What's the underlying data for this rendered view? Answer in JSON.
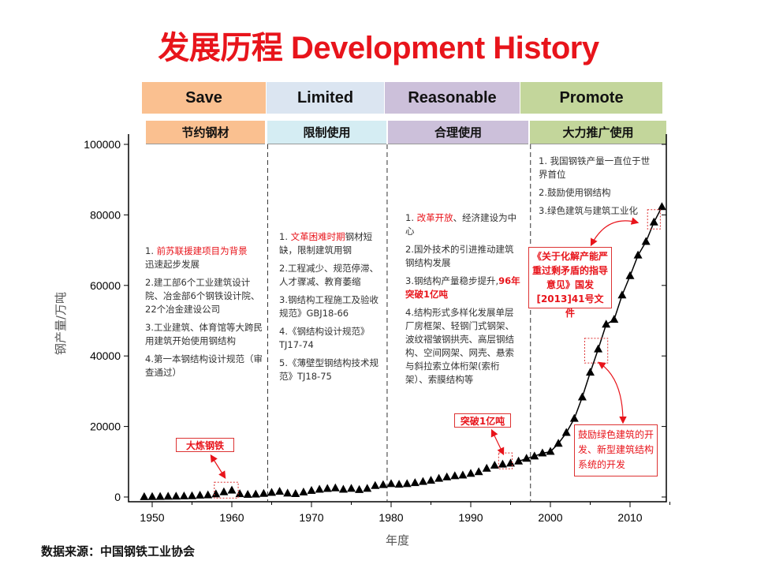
{
  "title": "发展历程 Development History",
  "stages_en": [
    "Save",
    "Limited",
    "Reasonable",
    "Promote"
  ],
  "stages_cn": [
    "节约钢材",
    "限制使用",
    "合理使用",
    "大力推广使用"
  ],
  "colors": {
    "save": "#fac090",
    "limited": "#dbe5f1",
    "limited_cn": "#d5edf3",
    "reasonable": "#ccc0da",
    "promote": "#c3d69b",
    "accent": "#e8141b"
  },
  "notes": {
    "p1": [
      "1. ",
      "前苏联援建项目为背景",
      "迅速起步发展",
      "2.建工部6个工业建筑设计院、冶金部6个钢铁设计院、22个冶金建设公司",
      "3.工业建筑、体育馆等大跨民用建筑开始使用钢结构",
      "4.第一本钢结构设计规范（审查通过）"
    ],
    "p2": [
      "1. ",
      "文革困难时期",
      "钢材短缺，限制建筑用钢",
      "2.工程减少、规范停滞、人才骤减、教育萎缩",
      "3.钢结构工程施工及验收规范》GBJ18-66",
      "4.《钢结构设计规范》TJ17-74",
      "5.《薄壁型钢结构技术规范》TJ18-75"
    ],
    "p3": [
      "1. ",
      "改革开放",
      "、经济建设为中心",
      "2.国外技术的引进推动建筑钢结构发展",
      "3.钢结构产量稳步提升,",
      "96年突破1亿吨",
      "4.结构形式多样化发展单层厂房框架、轻钢门式钢架、波纹褶皱钢拱壳、高层钢结构、空间网架、网壳、悬索与斜拉索立体桁架(索桁架）、索膜结构等"
    ],
    "p4": [
      "1. 我国钢铁产量一直位于世界首位",
      "2.鼓励使用钢结构",
      "3.绿色建筑与建筑工业化"
    ]
  },
  "callouts": {
    "c1": "大炼钢铁",
    "c2": "突破1亿吨",
    "c3": "《关于化解产能严重过剩矛盾的指导意见》国发[2013]41号文件",
    "c4": "鼓励绿色建筑的开发、新型建筑结构系统的开发"
  },
  "source": "数据来源：中国钢铁工业协会",
  "chart_data": {
    "type": "scatter",
    "xlabel": "年度",
    "ylabel": "钢产量/万吨",
    "xlim": [
      1947,
      2015
    ],
    "ylim": [
      0,
      100000
    ],
    "xticks": [
      1950,
      1960,
      1970,
      1980,
      1990,
      2000,
      2010
    ],
    "yticks": [
      0,
      20000,
      40000,
      60000,
      80000,
      100000
    ],
    "stage_dividers": [
      1964.5,
      1979.5,
      1997.5
    ],
    "marker": "triangle",
    "x": [
      1949,
      1950,
      1951,
      1952,
      1953,
      1954,
      1955,
      1956,
      1957,
      1958,
      1959,
      1960,
      1961,
      1962,
      1963,
      1964,
      1965,
      1966,
      1967,
      1968,
      1969,
      1970,
      1971,
      1972,
      1973,
      1974,
      1975,
      1976,
      1977,
      1978,
      1979,
      1980,
      1981,
      1982,
      1983,
      1984,
      1985,
      1986,
      1987,
      1988,
      1989,
      1990,
      1991,
      1992,
      1993,
      1994,
      1995,
      1996,
      1997,
      1998,
      1999,
      2000,
      2001,
      2002,
      2003,
      2004,
      2005,
      2006,
      2007,
      2008,
      2009,
      2010,
      2011,
      2012,
      2013,
      2014
    ],
    "y": [
      16,
      61,
      90,
      135,
      177,
      223,
      285,
      447,
      535,
      800,
      1387,
      1866,
      870,
      667,
      762,
      964,
      1223,
      1532,
      1029,
      904,
      1333,
      1779,
      2132,
      2338,
      2522,
      2112,
      2390,
      2046,
      2374,
      3178,
      3448,
      3712,
      3560,
      3716,
      4002,
      4347,
      4679,
      5221,
      5628,
      5943,
      6159,
      6635,
      7100,
      8094,
      8956,
      9261,
      9536,
      10124,
      10894,
      11559,
      12426,
      12850,
      15163,
      18225,
      22234,
      28291,
      35324,
      41915,
      48929,
      50305,
      57218,
      62696,
      68528,
      72388,
      77904,
      82270
    ]
  }
}
